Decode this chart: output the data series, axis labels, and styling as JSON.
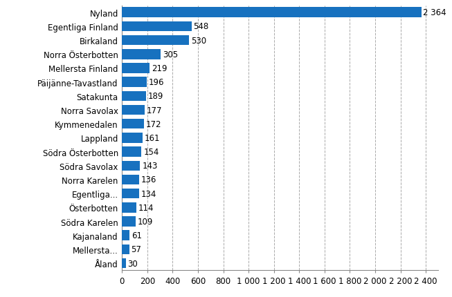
{
  "categories": [
    "Nyland",
    "Egentliga Finland",
    "Birkaland",
    "Norra Österbotten",
    "Mellersta Finland",
    "Päijänne-Tavastland",
    "Satakunta",
    "Norra Savolax",
    "Kymmenedalen",
    "Lappland",
    "Södra Österbotten",
    "Södra Savolax",
    "Norra Karelen",
    "Egentliga...",
    "Österbotten",
    "Södra Karelen",
    "Kajanaland",
    "Mellersta...",
    "Åland"
  ],
  "values": [
    2364,
    548,
    530,
    305,
    219,
    196,
    189,
    177,
    172,
    161,
    154,
    143,
    136,
    134,
    114,
    109,
    61,
    57,
    30
  ],
  "bar_color": "#1771bf",
  "label_color": "#000000",
  "background_color": "#ffffff",
  "grid_color": "#aaaaaa",
  "xlim": [
    0,
    2500
  ],
  "xticks": [
    0,
    200,
    400,
    600,
    800,
    1000,
    1200,
    1400,
    1600,
    1800,
    2000,
    2200,
    2400
  ],
  "xtick_labels": [
    "0",
    "200",
    "400",
    "600",
    "800",
    "1 000",
    "1 200",
    "1 400",
    "1 600",
    "1 800",
    "2 000",
    "2 200",
    "2 400"
  ],
  "value_labels": [
    "2 364",
    "548",
    "530",
    "305",
    "219",
    "196",
    "189",
    "177",
    "172",
    "161",
    "154",
    "143",
    "136",
    "134",
    "114",
    "109",
    "61",
    "57",
    "30"
  ],
  "bar_height": 0.72,
  "fontsize": 8.5,
  "tick_fontsize": 8.5
}
